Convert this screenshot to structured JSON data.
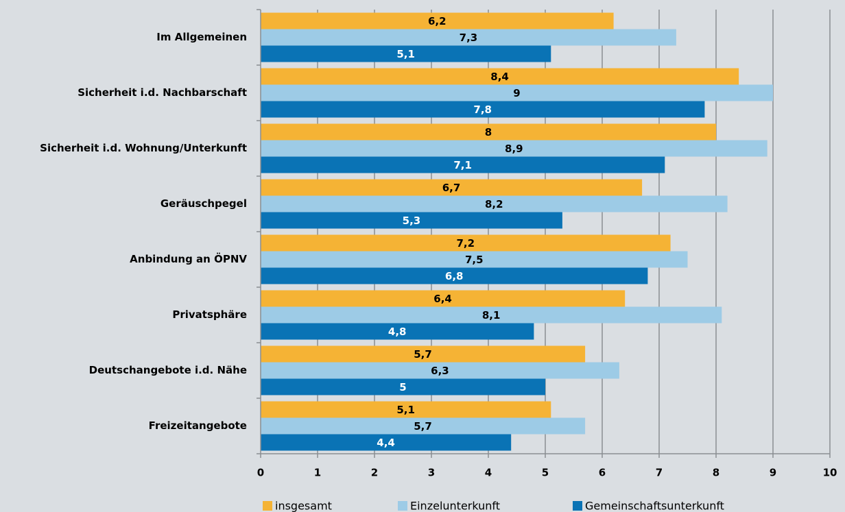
{
  "chart_data": {
    "type": "bar",
    "orientation": "horizontal",
    "categories": [
      "Im Allgemeinen",
      "Sicherheit i.d. Nachbarschaft",
      "Sicherheit i.d. Wohnung/Unterkunft",
      "Geräuschpegel",
      "Anbindung an ÖPNV",
      "Privatsphäre",
      "Deutschangebote i.d. Nähe",
      "Freizeitangebote"
    ],
    "series": [
      {
        "name": "insgesamt",
        "color": "#f5b335",
        "label_color": "#000000",
        "values": [
          6.2,
          8.4,
          8,
          6.7,
          7.2,
          6.4,
          5.7,
          5.1
        ],
        "value_labels": [
          "6,2",
          "8,4",
          "8",
          "6,7",
          "7,2",
          "6,4",
          "5,7",
          "5,1"
        ]
      },
      {
        "name": "Einzelunterkunft",
        "color": "#9dcbe6",
        "label_color": "#000000",
        "values": [
          7.3,
          9,
          8.9,
          8.2,
          7.5,
          8.1,
          6.3,
          5.7
        ],
        "value_labels": [
          "7,3",
          "9",
          "8,9",
          "8,2",
          "7,5",
          "8,1",
          "6,3",
          "5,7"
        ]
      },
      {
        "name": "Gemeinschaftsunterkunft",
        "color": "#0a73b5",
        "label_color": "#ffffff",
        "values": [
          5.1,
          7.8,
          7.1,
          5.3,
          6.8,
          4.8,
          5,
          4.4
        ],
        "value_labels": [
          "5,1",
          "7,8",
          "7,1",
          "5,3",
          "6,8",
          "4,8",
          "5",
          "4,4"
        ]
      }
    ],
    "xlim": [
      0,
      10
    ],
    "xticks": [
      0,
      1,
      2,
      3,
      4,
      5,
      6,
      7,
      8,
      9,
      10
    ],
    "grid": true,
    "legend": "bottom"
  }
}
